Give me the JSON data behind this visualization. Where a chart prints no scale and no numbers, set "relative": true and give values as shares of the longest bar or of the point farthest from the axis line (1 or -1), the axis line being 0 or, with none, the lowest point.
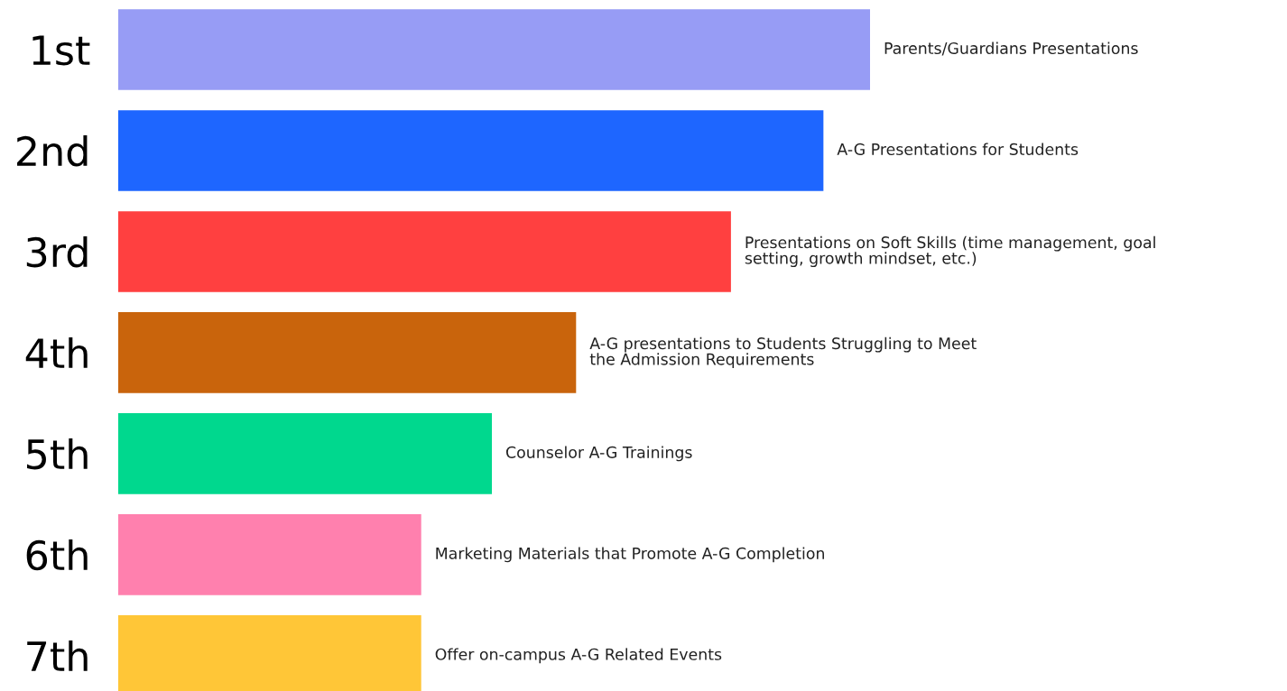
{
  "chart_data": {
    "type": "bar",
    "orientation": "horizontal",
    "relative": true,
    "tick_labels": "y",
    "categories": [
      "1st",
      "2nd",
      "3rd",
      "4th",
      "5th",
      "6th",
      "7th"
    ],
    "values": [
      1,
      0.938,
      0.815,
      0.609,
      0.497,
      0.403,
      0.403
    ],
    "colors": [
      "#979cf5",
      "#1e66ff",
      "#ff4040",
      "#c9640c",
      "#00d88e",
      "#ff80ae",
      "#ffc637"
    ],
    "annotations": [
      {
        "text": "Parents/Guardians Presentations",
        "x": 1,
        "y": "1st"
      },
      {
        "text": "A-G Presentations for Students",
        "x": 0.938,
        "y": "2nd"
      },
      {
        "text": "Presentations on Soft Skills (time management, goal\nsetting, growth mindset, etc.)",
        "x": 0.815,
        "y": "3rd"
      },
      {
        "text": "A-G presentations to Students Struggling to Meet\nthe Admission Requirements",
        "x": 0.609,
        "y": "4th"
      },
      {
        "text": "Counselor A-G Trainings",
        "x": 0.497,
        "y": "5th"
      },
      {
        "text": "Marketing Materials that Promote A-G Completion",
        "x": 0.403,
        "y": "6th"
      },
      {
        "text": "Offer on-campus A-G Related Events",
        "x": 0.403,
        "y": "7th"
      }
    ]
  }
}
